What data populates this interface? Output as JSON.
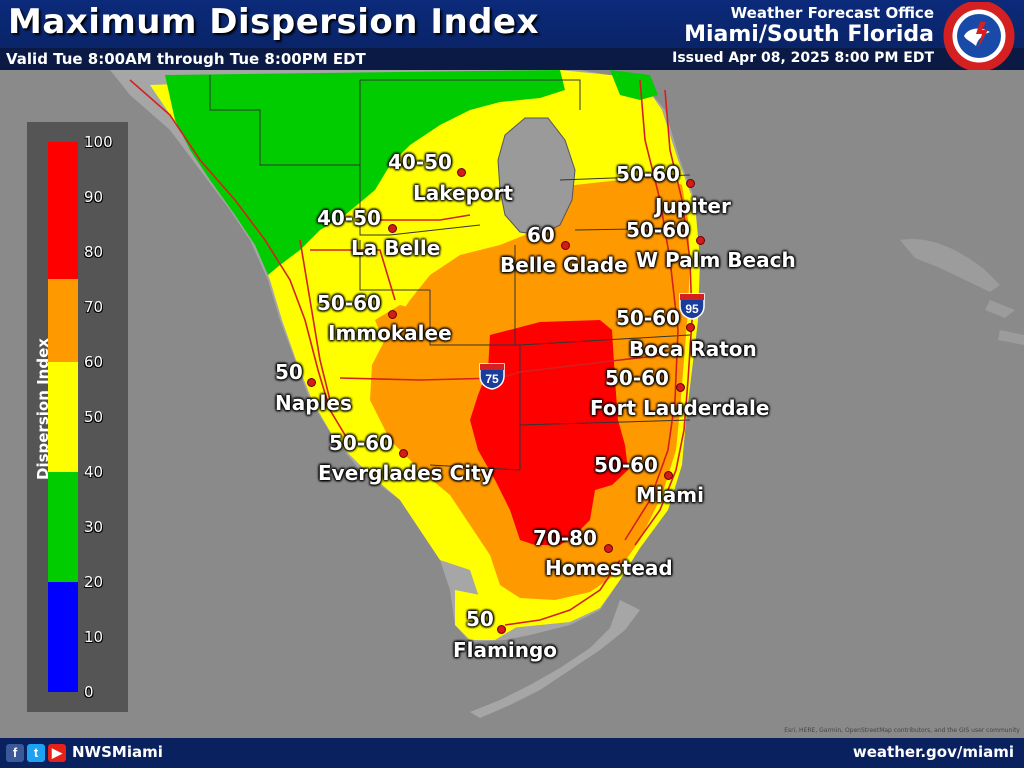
{
  "header": {
    "title": "Maximum Dispersion Index",
    "valid": "Valid Tue 8:00AM through Tue 8:00PM EDT",
    "office_line1": "Weather Forecast Office",
    "office_line2": "Miami/South Florida",
    "issued": "Issued Apr 08, 2025 8:00 PM EDT",
    "logo_icon": "nws-logo-icon"
  },
  "legend": {
    "title": "Dispersion Index",
    "ticks": [
      "100",
      "90",
      "80",
      "70",
      "60",
      "50",
      "40",
      "30",
      "20",
      "10",
      "0"
    ],
    "bands": [
      {
        "range": "80-100",
        "color": "#ff0000"
      },
      {
        "range": "60-80",
        "color": "#ff9900"
      },
      {
        "range": "40-60",
        "color": "#ffff00"
      },
      {
        "range": "20-40",
        "color": "#00cc00"
      },
      {
        "range": "0-20",
        "color": "#0000ff"
      }
    ]
  },
  "cities": [
    {
      "name": "Lakeport",
      "value": "40-50"
    },
    {
      "name": "La Belle",
      "value": "40-50"
    },
    {
      "name": "Belle Glade",
      "value": "60"
    },
    {
      "name": "Jupiter",
      "value": "50-60"
    },
    {
      "name": "W Palm Beach",
      "value": "50-60"
    },
    {
      "name": "Immokalee",
      "value": "50-60"
    },
    {
      "name": "Boca Raton",
      "value": "50-60"
    },
    {
      "name": "Naples",
      "value": "50"
    },
    {
      "name": "Fort Lauderdale",
      "value": "50-60"
    },
    {
      "name": "Everglades City",
      "value": "50-60"
    },
    {
      "name": "Miami",
      "value": "50-60"
    },
    {
      "name": "Homestead",
      "value": "70-80"
    },
    {
      "name": "Flamingo",
      "value": "50"
    }
  ],
  "highways": [
    {
      "name": "75"
    },
    {
      "name": "95"
    }
  ],
  "footer": {
    "social_icons": [
      "facebook-icon",
      "twitter-icon",
      "youtube-icon"
    ],
    "handle": "NWSMiami",
    "website": "weather.gov/miami",
    "attribution": "Esri, HERE, Garmin, OpenStreetMap contributors, and the GIS user community"
  },
  "colors": {
    "header_bg": "#0a2160",
    "water": "#8a8a8a",
    "lake": "#9a9a9a",
    "road": "#d42020"
  }
}
